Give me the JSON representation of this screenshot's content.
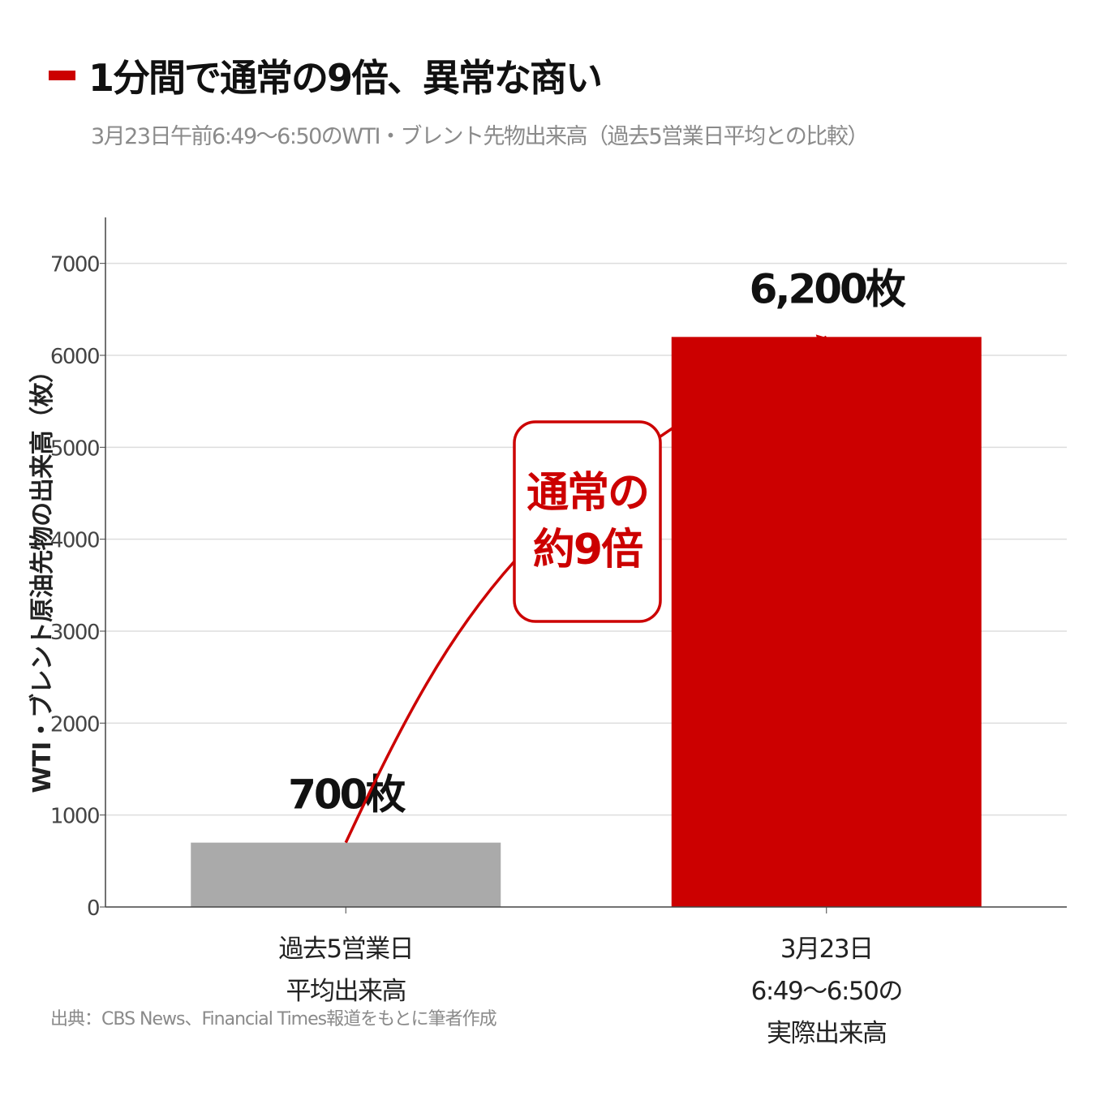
{
  "title": "1分間で通常の9倍、異常な商い",
  "subtitle": "3月23日午前6:49〜6:50のWTI・ブレント先物出来高（過去5営業日平均との比較）",
  "source": "出典：CBS News、Financial Times報道をもとに筆者作成",
  "callout": {
    "line1": "通常の",
    "line2": "約9倍"
  },
  "colors": {
    "accent": "#cc0000",
    "baseline_bar": "#aaaaaa",
    "grid": "#dddddd",
    "axis": "#444444"
  },
  "chart_data": {
    "type": "bar",
    "categories": [
      [
        "過去5営業日",
        "平均出来高"
      ],
      [
        "3月23日",
        "6:49〜6:50の",
        "実際出来高"
      ]
    ],
    "values": [
      700,
      6200
    ],
    "data_labels": [
      "700枚",
      "6,200枚"
    ],
    "bar_colors": [
      "#aaaaaa",
      "#cc0000"
    ],
    "ylabel": "WTI・ブレント原油先物の出来高（枚）",
    "ylim": [
      0,
      7500
    ],
    "yticks": [
      0,
      1000,
      2000,
      3000,
      4000,
      5000,
      6000,
      7000
    ],
    "grid": true,
    "legend": "none"
  }
}
